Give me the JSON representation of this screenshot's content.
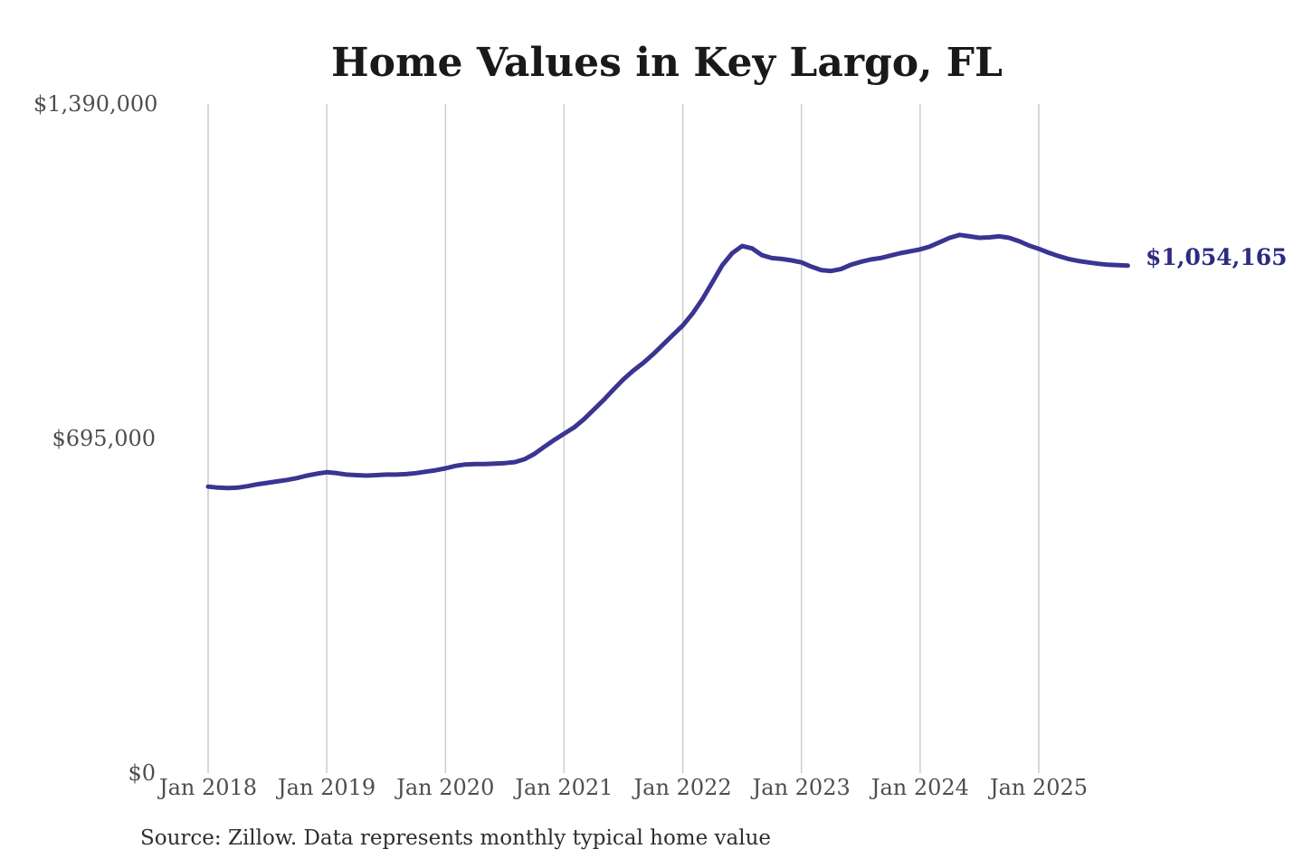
{
  "header": {
    "title": "Home Values in Key Largo, FL"
  },
  "chart": {
    "end_label": "$1,054,165",
    "line_color": "#3a3492",
    "end_label_color": "#2d2b80",
    "gridline_color": "#cccccc"
  },
  "footer": {
    "source": "Source: Zillow. Data represents monthly typical home value"
  },
  "chart_data": {
    "type": "line",
    "title": "Home Values in Key Largo, FL",
    "xlabel": "",
    "ylabel": "",
    "ylim": [
      0,
      1390000
    ],
    "grid": "vertical-only",
    "legend_position": "none",
    "x_interval": "monthly",
    "x_start": "2018-01",
    "x_end": "2025-10",
    "x_tick_labels": [
      "Jan 2018",
      "Jan 2019",
      "Jan 2020",
      "Jan 2021",
      "Jan 2022",
      "Jan 2023",
      "Jan 2024",
      "Jan 2025"
    ],
    "y_tick_labels": [
      "$1,390,000",
      "$695,000",
      "$0"
    ],
    "y_tick_values": [
      1390000,
      695000,
      0
    ],
    "end_value": 1054165,
    "end_value_label": "$1,054,165",
    "series": [
      {
        "name": "Monthly typical home value",
        "values": [
          595000,
          593000,
          592000,
          593000,
          596000,
          600000,
          603000,
          606000,
          609000,
          613000,
          618000,
          622000,
          625000,
          623000,
          620000,
          619000,
          618000,
          619000,
          620000,
          620000,
          621000,
          623000,
          626000,
          629000,
          633000,
          638000,
          641000,
          642000,
          642000,
          643000,
          644000,
          646000,
          652000,
          663000,
          678000,
          692000,
          705000,
          718000,
          735000,
          755000,
          775000,
          797000,
          818000,
          836000,
          852000,
          870000,
          890000,
          910000,
          930000,
          955000,
          985000,
          1020000,
          1055000,
          1080000,
          1095000,
          1090000,
          1076000,
          1070000,
          1068000,
          1065000,
          1061000,
          1052000,
          1045000,
          1043000,
          1047000,
          1056000,
          1062000,
          1067000,
          1070000,
          1075000,
          1080000,
          1084000,
          1088000,
          1094000,
          1103000,
          1112000,
          1118000,
          1115000,
          1112000,
          1113000,
          1115000,
          1112000,
          1105000,
          1096000,
          1089000,
          1081000,
          1074000,
          1068000,
          1064000,
          1061000,
          1058000,
          1056000,
          1055000,
          1054165
        ]
      }
    ]
  }
}
